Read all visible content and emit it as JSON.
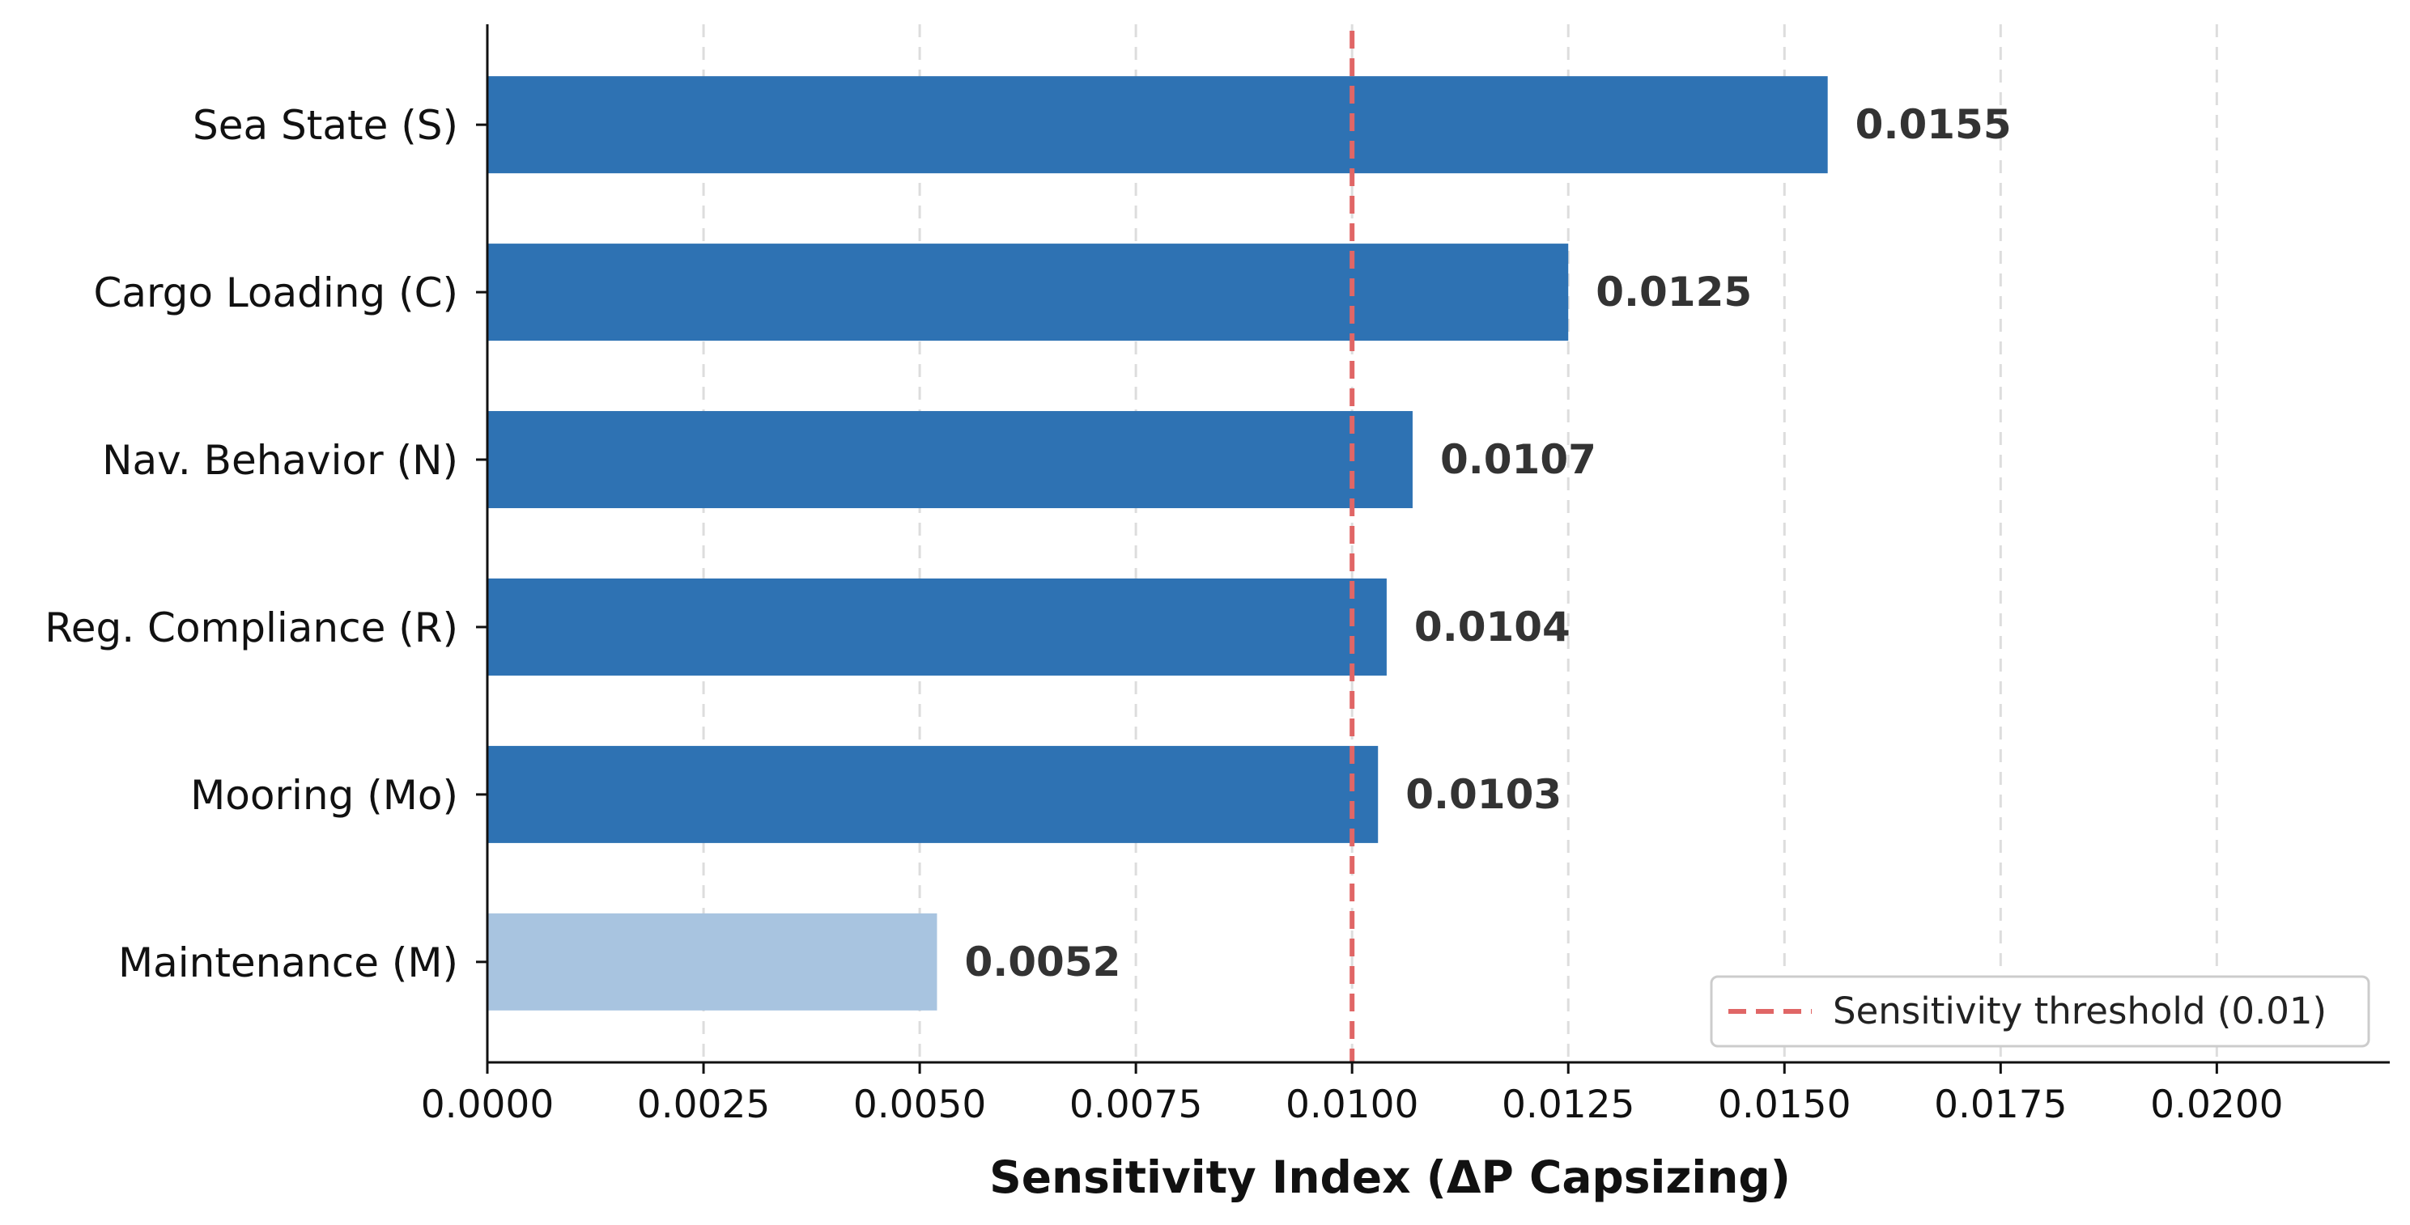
{
  "chart_data": {
    "type": "bar",
    "orientation": "horizontal",
    "categories": [
      "Sea State (S)",
      "Cargo Loading (C)",
      "Nav. Behavior (N)",
      "Reg. Compliance (R)",
      "Mooring (Mo)",
      "Maintenance (M)"
    ],
    "values": [
      0.0155,
      0.0125,
      0.0107,
      0.0104,
      0.0103,
      0.0052
    ],
    "value_labels": [
      "0.0155",
      "0.0125",
      "0.0107",
      "0.0104",
      "0.0103",
      "0.0052"
    ],
    "bar_colors": [
      "#2e72b3",
      "#2e72b3",
      "#2e72b3",
      "#2e72b3",
      "#2e72b3",
      "#a8c4e0"
    ],
    "title": "",
    "xlabel": "Sensitivity Index (ΔP Capsizing)",
    "ylabel": "",
    "xlim": [
      0.0,
      0.022
    ],
    "xticks": [
      0.0,
      0.0025,
      0.005,
      0.0075,
      0.01,
      0.0125,
      0.015,
      0.0175,
      0.02
    ],
    "xtick_labels": [
      "0.0000",
      "0.0025",
      "0.0050",
      "0.0075",
      "0.0100",
      "0.0125",
      "0.0150",
      "0.0175",
      "0.0200"
    ],
    "grid": "vertical dashed",
    "threshold": {
      "value": 0.01,
      "label": "Sensitivity threshold (0.01)",
      "color": "#e06666",
      "style": "dashed"
    },
    "legend": {
      "position": "bottom-right",
      "entries": [
        "Sensitivity threshold (0.01)"
      ]
    }
  }
}
